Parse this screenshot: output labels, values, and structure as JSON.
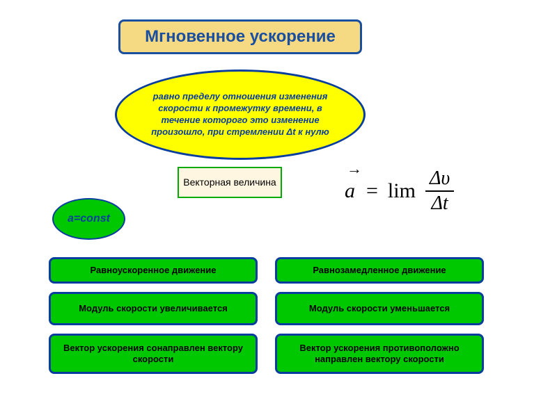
{
  "title": "Мгновенное ускорение",
  "definition": "равно пределу отношения изменения скорости к промежутку времени, в течение которого это изменение произошло, при стремлении Δt к нулю",
  "vector_label": "Векторная величина",
  "aconst": "a=const",
  "formula": {
    "lhs": "a",
    "eq": "=",
    "lim": "lim",
    "numerator": "Δυ",
    "denominator": "Δt",
    "arrow": "→"
  },
  "left_column": {
    "r1": "Равноускоренное движение",
    "r2": "Модуль скорости увеличивается",
    "r3": "Вектор ускорения сонаправлен вектору скорости"
  },
  "right_column": {
    "r1": "Равнозамедленное движение",
    "r2": "Модуль скорости уменьшается",
    "r3": "Вектор ускорения противоположно направлен вектору скорости"
  },
  "colors": {
    "title_bg": "#f5d983",
    "border_blue": "#1a4fa0",
    "ellipse_bg": "#ffff00",
    "ellipse_border": "#0a3e9e",
    "green": "#00c800",
    "vector_bg": "#fef6e0"
  },
  "fonts": {
    "title_size": 24,
    "ellipse_size": 13,
    "box_size": 13,
    "formula_size": 30
  }
}
